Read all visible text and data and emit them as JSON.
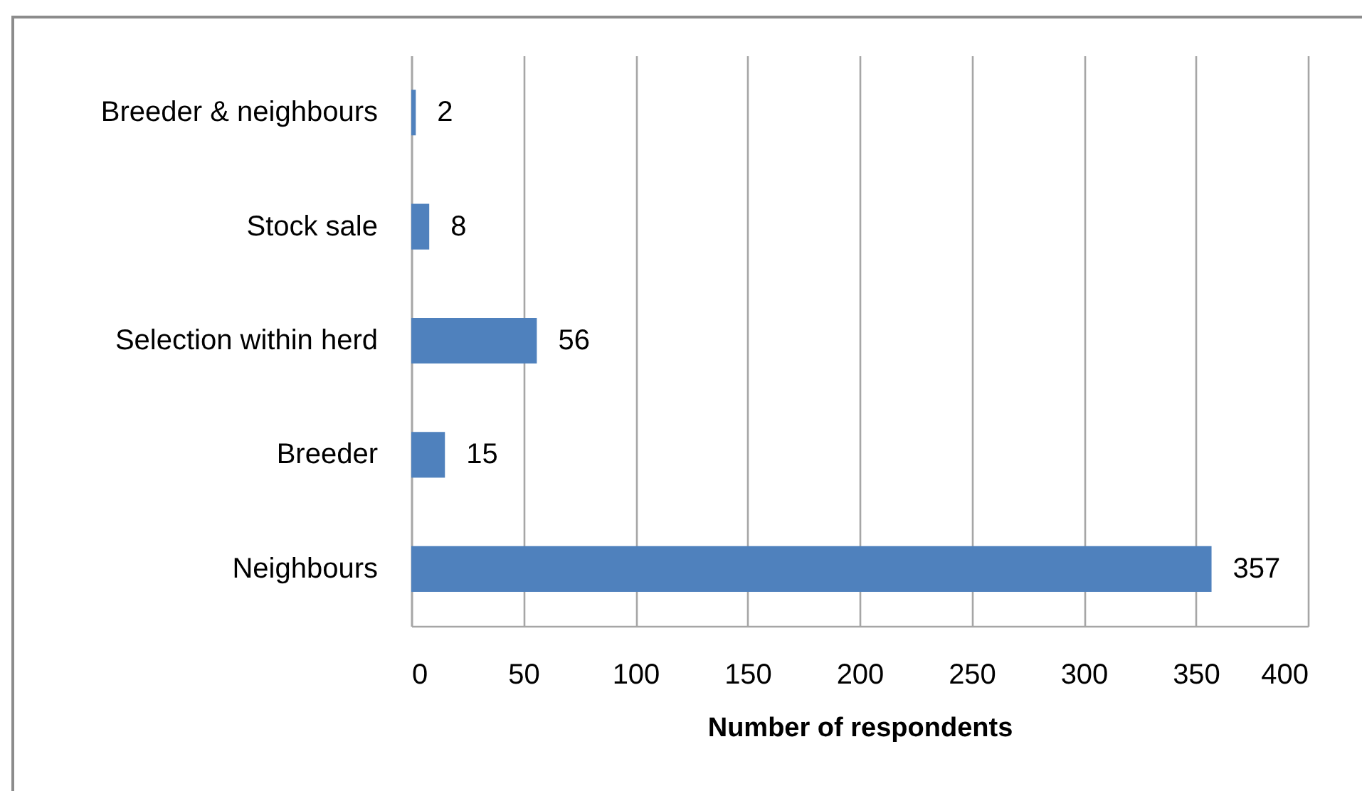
{
  "chart_data": {
    "type": "bar",
    "orientation": "horizontal",
    "categories": [
      "Breeder & neighbours",
      "Stock sale",
      "Selection within herd",
      "Breeder",
      "Neighbours"
    ],
    "values": [
      2,
      8,
      56,
      15,
      357
    ],
    "color": "#4f81bd",
    "data_labels": true,
    "xlabel": "Number of respondents",
    "xlim": [
      0,
      400
    ],
    "xticks": [
      0,
      50,
      100,
      150,
      200,
      250,
      300,
      350,
      400
    ],
    "grid": "x"
  }
}
